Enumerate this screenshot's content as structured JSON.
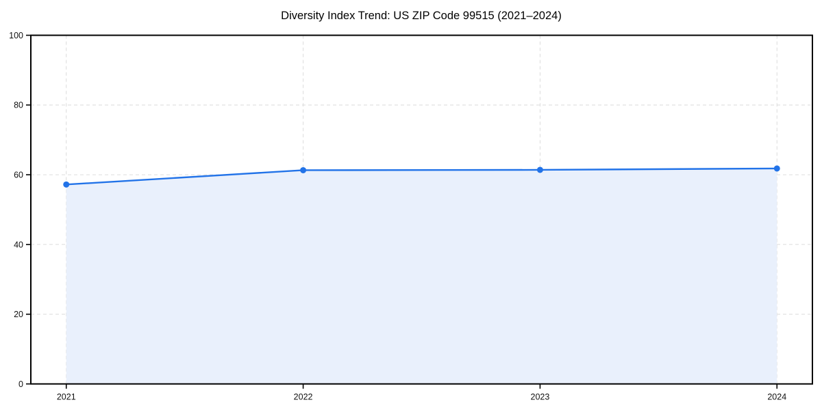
{
  "chart_data": {
    "type": "area",
    "title": "Diversity Index Trend: US ZIP Code 99515 (2021–2024)",
    "xlabel": "",
    "ylabel": "",
    "categories": [
      "2021",
      "2022",
      "2023",
      "2024"
    ],
    "series": [
      {
        "name": "Diversity Index",
        "values": [
          57.2,
          61.3,
          61.4,
          61.8
        ]
      }
    ],
    "ylim": [
      0,
      100
    ],
    "yticks": [
      0,
      20,
      40,
      60,
      80,
      100
    ],
    "grid": "dashed-both-axes",
    "legend": "none",
    "colors": {
      "line": "#2273e8",
      "marker": "#2273e8",
      "fill": "#e9f0fc",
      "grid": "#dcdcdc",
      "spine": "#000000",
      "tick_text": "#111111",
      "title_text": "#000000",
      "background": "#ffffff"
    }
  }
}
